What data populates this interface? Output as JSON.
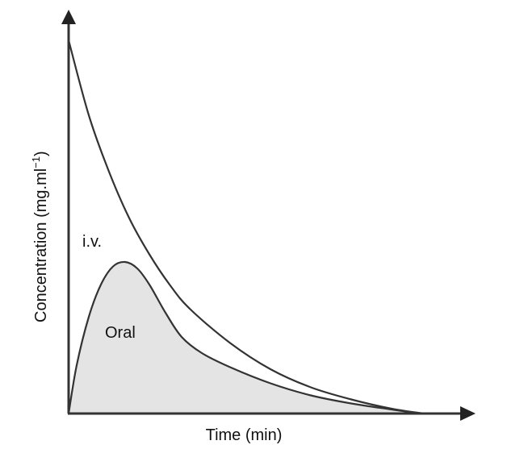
{
  "chart_data": {
    "type": "area",
    "title": "",
    "xlabel": "Time (min)",
    "ylabel": "Concentration (mg.ml",
    "ylabel_superscript": "−1",
    "ylabel_close": ")",
    "xlim": [
      0,
      100
    ],
    "ylim": [
      0,
      100
    ],
    "grid": false,
    "ticks": false,
    "series": [
      {
        "name": "i.v.",
        "fill": false,
        "color": "#333333",
        "x": [
          0,
          5,
          10,
          15,
          20,
          25,
          30,
          40,
          50,
          60,
          70,
          80,
          88
        ],
        "y": [
          92.6,
          74,
          60,
          48.5,
          39.5,
          32,
          26,
          17.5,
          11,
          6.5,
          3.5,
          1.2,
          0
        ]
      },
      {
        "name": "Oral",
        "fill": true,
        "color": "#333333",
        "fill_color": "#e4e4e4",
        "x": [
          0,
          2,
          5,
          8,
          11,
          14,
          17,
          20,
          24,
          28,
          33,
          40,
          50,
          60,
          70,
          80,
          87
        ],
        "y": [
          0,
          12,
          24,
          32,
          36.5,
          37.6,
          36,
          32,
          25,
          19,
          15,
          11.5,
          7.5,
          4.5,
          2.5,
          1,
          0
        ]
      }
    ]
  }
}
